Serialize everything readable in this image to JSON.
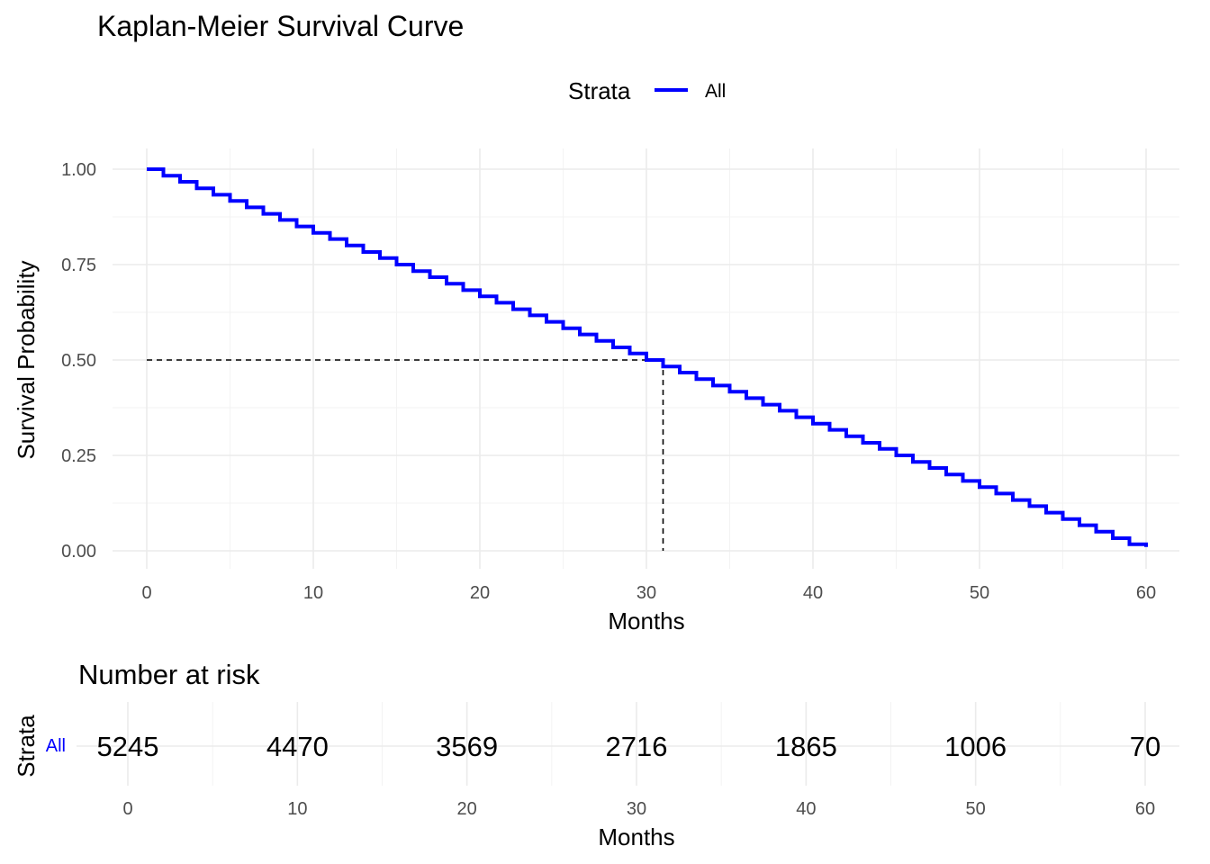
{
  "chart_data": [
    {
      "type": "line",
      "title": "Kaplan-Meier Survival Curve",
      "xlabel": "Months",
      "ylabel": "Survival Probability",
      "xlim": [
        0,
        60
      ],
      "ylim": [
        0,
        1
      ],
      "x_ticks": [
        0,
        10,
        20,
        30,
        40,
        50,
        60
      ],
      "y_ticks": [
        0,
        0.25,
        0.5,
        0.75,
        1
      ],
      "y_tick_labels": [
        "0.00",
        "0.25",
        "0.50",
        "0.75",
        "1.00"
      ],
      "grid": true,
      "legend": {
        "title": "Strata",
        "position": "top",
        "entries": [
          "All"
        ]
      },
      "series": [
        {
          "name": "All",
          "step": true,
          "color": "#0000ff",
          "x": [
            0,
            1,
            2,
            3,
            4,
            5,
            6,
            7,
            8,
            9,
            10,
            11,
            12,
            13,
            14,
            15,
            16,
            17,
            18,
            19,
            20,
            21,
            22,
            23,
            24,
            25,
            26,
            27,
            28,
            29,
            30,
            31,
            32,
            33,
            34,
            35,
            36,
            37,
            38,
            39,
            40,
            41,
            42,
            43,
            44,
            45,
            46,
            47,
            48,
            49,
            50,
            51,
            52,
            53,
            54,
            55,
            56,
            57,
            58,
            59,
            60
          ],
          "values": [
            1.0,
            0.983,
            0.967,
            0.95,
            0.933,
            0.917,
            0.9,
            0.883,
            0.867,
            0.85,
            0.833,
            0.817,
            0.8,
            0.783,
            0.767,
            0.75,
            0.733,
            0.717,
            0.7,
            0.683,
            0.667,
            0.65,
            0.633,
            0.617,
            0.6,
            0.583,
            0.567,
            0.55,
            0.533,
            0.517,
            0.5,
            0.483,
            0.467,
            0.45,
            0.433,
            0.417,
            0.4,
            0.383,
            0.367,
            0.35,
            0.333,
            0.317,
            0.3,
            0.283,
            0.267,
            0.25,
            0.233,
            0.217,
            0.2,
            0.183,
            0.167,
            0.15,
            0.133,
            0.117,
            0.1,
            0.083,
            0.067,
            0.05,
            0.033,
            0.017,
            0.01
          ]
        }
      ],
      "median": {
        "x": 31,
        "y": 0.5,
        "line_style": "dashed"
      }
    },
    {
      "type": "table",
      "title": "Number at risk",
      "xlabel": "Months",
      "ylabel": "Strata",
      "xlim": [
        0,
        60
      ],
      "x_ticks": [
        0,
        10,
        20,
        30,
        40,
        50,
        60
      ],
      "rows": [
        {
          "name": "All",
          "color": "#0000ff",
          "x": [
            0,
            10,
            20,
            30,
            40,
            50,
            60
          ],
          "values": [
            5245,
            4470,
            3569,
            2716,
            1865,
            1006,
            70
          ]
        }
      ]
    }
  ]
}
